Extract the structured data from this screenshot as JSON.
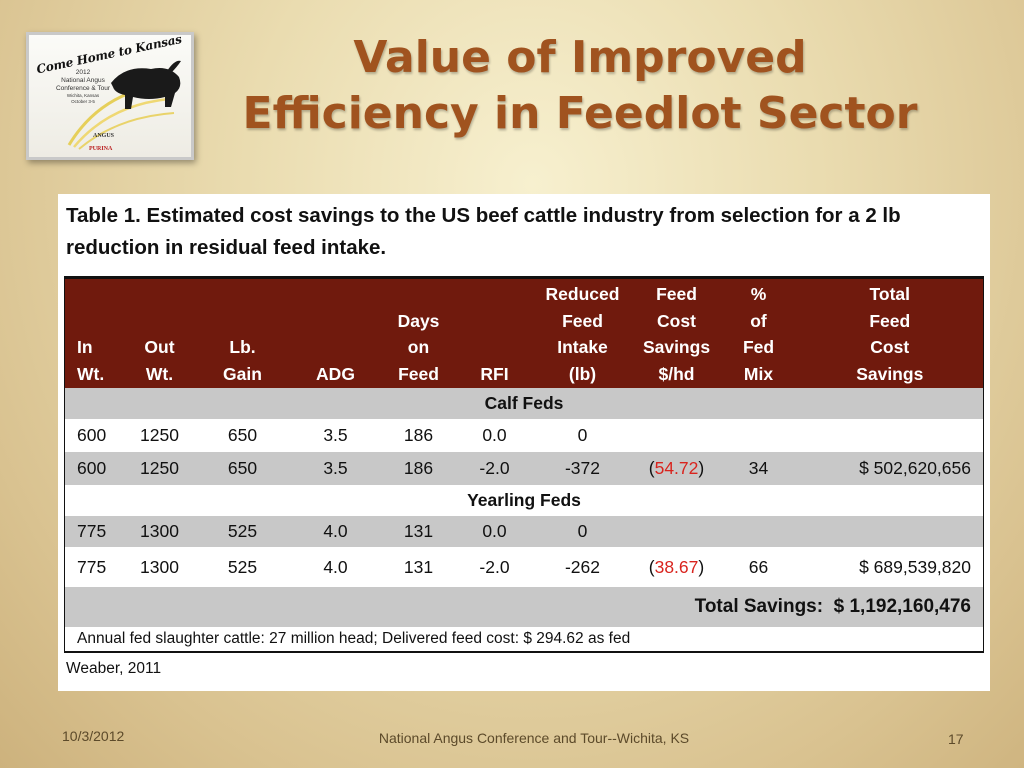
{
  "logo": {
    "script_text": "Come Home to Kansas",
    "lines": [
      "2012",
      "National Angus",
      "Conference & Tour",
      "Wichita, Kansas",
      "October 3-5"
    ],
    "angus": "ANGUS",
    "purina": "PURINA"
  },
  "title": {
    "line1": "Value of Improved",
    "line2": "Efficiency in Feedlot Sector"
  },
  "table": {
    "caption": "Table 1. Estimated cost savings to the US beef cattle industry from selection for a 2 lb reduction in residual feed intake.",
    "headers": [
      [
        "In",
        "Wt."
      ],
      [
        "Out",
        "Wt."
      ],
      [
        "Lb.",
        "Gain"
      ],
      [
        "ADG"
      ],
      [
        "Days",
        "on",
        "Feed"
      ],
      [
        "RFI"
      ],
      [
        "Reduced",
        "Feed",
        "Intake",
        "(lb)"
      ],
      [
        "Feed",
        "Cost",
        "Savings",
        "$/hd"
      ],
      [
        "%",
        "of",
        "Fed",
        "Mix"
      ],
      [
        "Total",
        "Feed",
        "Cost",
        "Savings"
      ]
    ],
    "calf_label": "Calf Feds",
    "calf_rows": [
      [
        "600",
        "1250",
        "650",
        "3.5",
        "186",
        "0.0",
        "0",
        "",
        "",
        ""
      ],
      [
        "600",
        "1250",
        "650",
        "3.5",
        "186",
        "-2.0",
        "-372",
        "54.72",
        "34",
        "$ 502,620,656"
      ]
    ],
    "yearling_label": "Yearling Feds",
    "yearling_rows": [
      [
        "775",
        "1300",
        "525",
        "4.0",
        "131",
        "0.0",
        "0",
        "",
        "",
        ""
      ],
      [
        "775",
        "1300",
        "525",
        "4.0",
        "131",
        "-2.0",
        "-262",
        "38.67",
        "66",
        "$ 689,539,820"
      ]
    ],
    "total_label": "Total Savings:",
    "total_value": "$ 1,192,160,476",
    "note": "Annual fed slaughter cattle:  27 million head; Delivered feed cost:  $ 294.62 as fed",
    "source": "Weaber, 2011"
  },
  "footer": {
    "date": "10/3/2012",
    "center": "National Angus Conference and Tour--Wichita, KS",
    "page": "17"
  },
  "colors": {
    "title": "#a0531f",
    "header_bg": "#701a0d",
    "band_gray": "#c8c8c8",
    "negative_value": "#d9241e"
  }
}
